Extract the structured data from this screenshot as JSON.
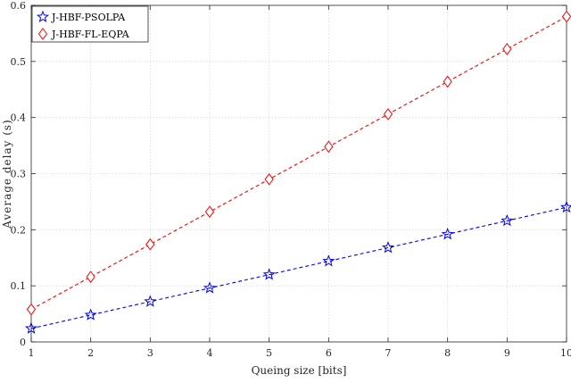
{
  "chart_data": {
    "type": "line",
    "xlabel": "Queing size [bits]",
    "ylabel": "Average delay (s)",
    "xlim": [
      1,
      10
    ],
    "ylim": [
      0,
      0.6
    ],
    "xticks": [
      1,
      2,
      3,
      4,
      5,
      6,
      7,
      8,
      9,
      10
    ],
    "yticks": [
      0,
      0.1,
      0.2,
      0.3,
      0.4,
      0.5,
      0.6
    ],
    "grid": true,
    "legend_position": "top-left",
    "x": [
      1,
      2,
      3,
      4,
      5,
      6,
      7,
      8,
      9,
      10
    ],
    "series": [
      {
        "name": "J-HBF-PSOLPA",
        "values": [
          0.024,
          0.048,
          0.072,
          0.096,
          0.12,
          0.144,
          0.168,
          0.192,
          0.216,
          0.24
        ],
        "color": "#0000ff",
        "marker": "star",
        "line_style": "dashed"
      },
      {
        "name": "J-HBF-FL-EQPA",
        "values": [
          0.058,
          0.116,
          0.174,
          0.232,
          0.29,
          0.348,
          0.406,
          0.464,
          0.522,
          0.58
        ],
        "color": "#ff0000",
        "marker": "diamond",
        "line_style": "dashed"
      }
    ]
  }
}
